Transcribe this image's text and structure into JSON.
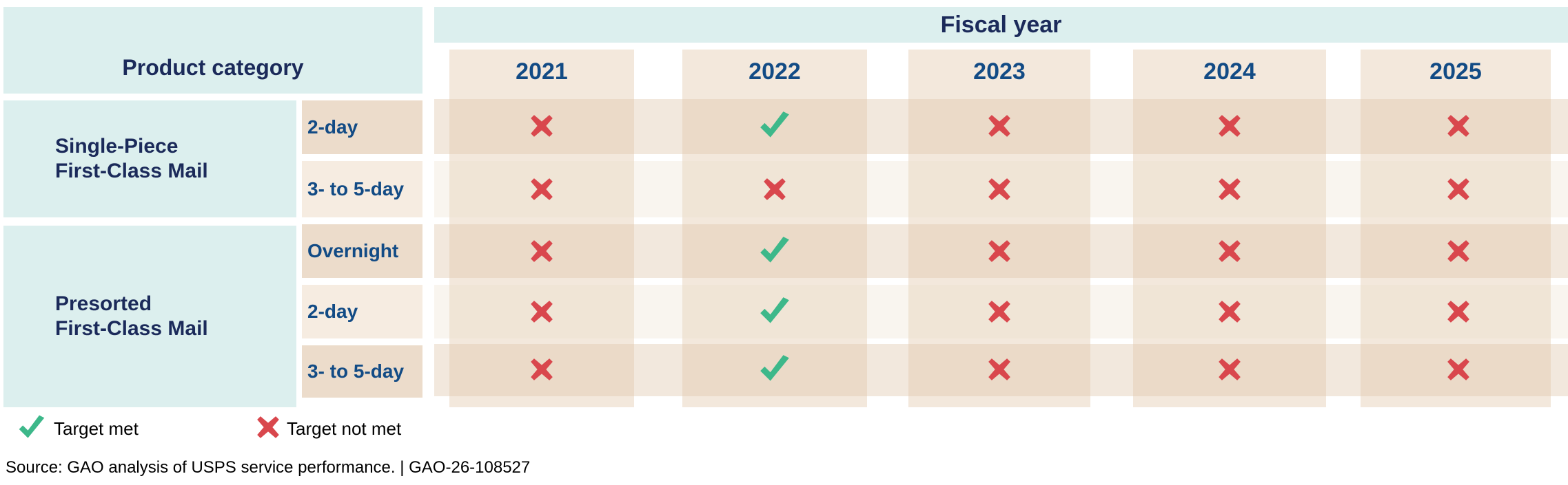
{
  "header": {
    "product_category": "Product category",
    "fiscal_year": "Fiscal year"
  },
  "colors": {
    "met": "#3db88a",
    "not_met": "#d9474d",
    "header_fill": "#dcefee",
    "year_text": "#124b85"
  },
  "chart_data": {
    "type": "table",
    "title": "",
    "columns": [
      "2021",
      "2022",
      "2023",
      "2024",
      "2025"
    ],
    "column_header": "Fiscal year",
    "row_header": "Product category",
    "groups": [
      {
        "category_lines": [
          "Single-Piece",
          "First-Class Mail"
        ],
        "rows": [
          {
            "standard": "2-day",
            "values": [
              "Target not met",
              "Target met",
              "Target not met",
              "Target not met",
              "Target not met"
            ]
          },
          {
            "standard": "3- to 5-day",
            "values": [
              "Target not met",
              "Target not met",
              "Target not met",
              "Target not met",
              "Target not met"
            ]
          }
        ]
      },
      {
        "category_lines": [
          "Presorted",
          "First-Class Mail"
        ],
        "rows": [
          {
            "standard": "Overnight",
            "values": [
              "Target not met",
              "Target met",
              "Target not met",
              "Target not met",
              "Target not met"
            ]
          },
          {
            "standard": "2-day",
            "values": [
              "Target not met",
              "Target met",
              "Target not met",
              "Target not met",
              "Target not met"
            ]
          },
          {
            "standard": "3- to 5-day",
            "values": [
              "Target not met",
              "Target met",
              "Target not met",
              "Target not met",
              "Target not met"
            ]
          }
        ]
      }
    ],
    "legend": {
      "met": "Target met",
      "not_met": "Target not met",
      "placement": "bottom-left"
    }
  },
  "source": "Source: GAO analysis of USPS service performance.  |  GAO-26-108527"
}
